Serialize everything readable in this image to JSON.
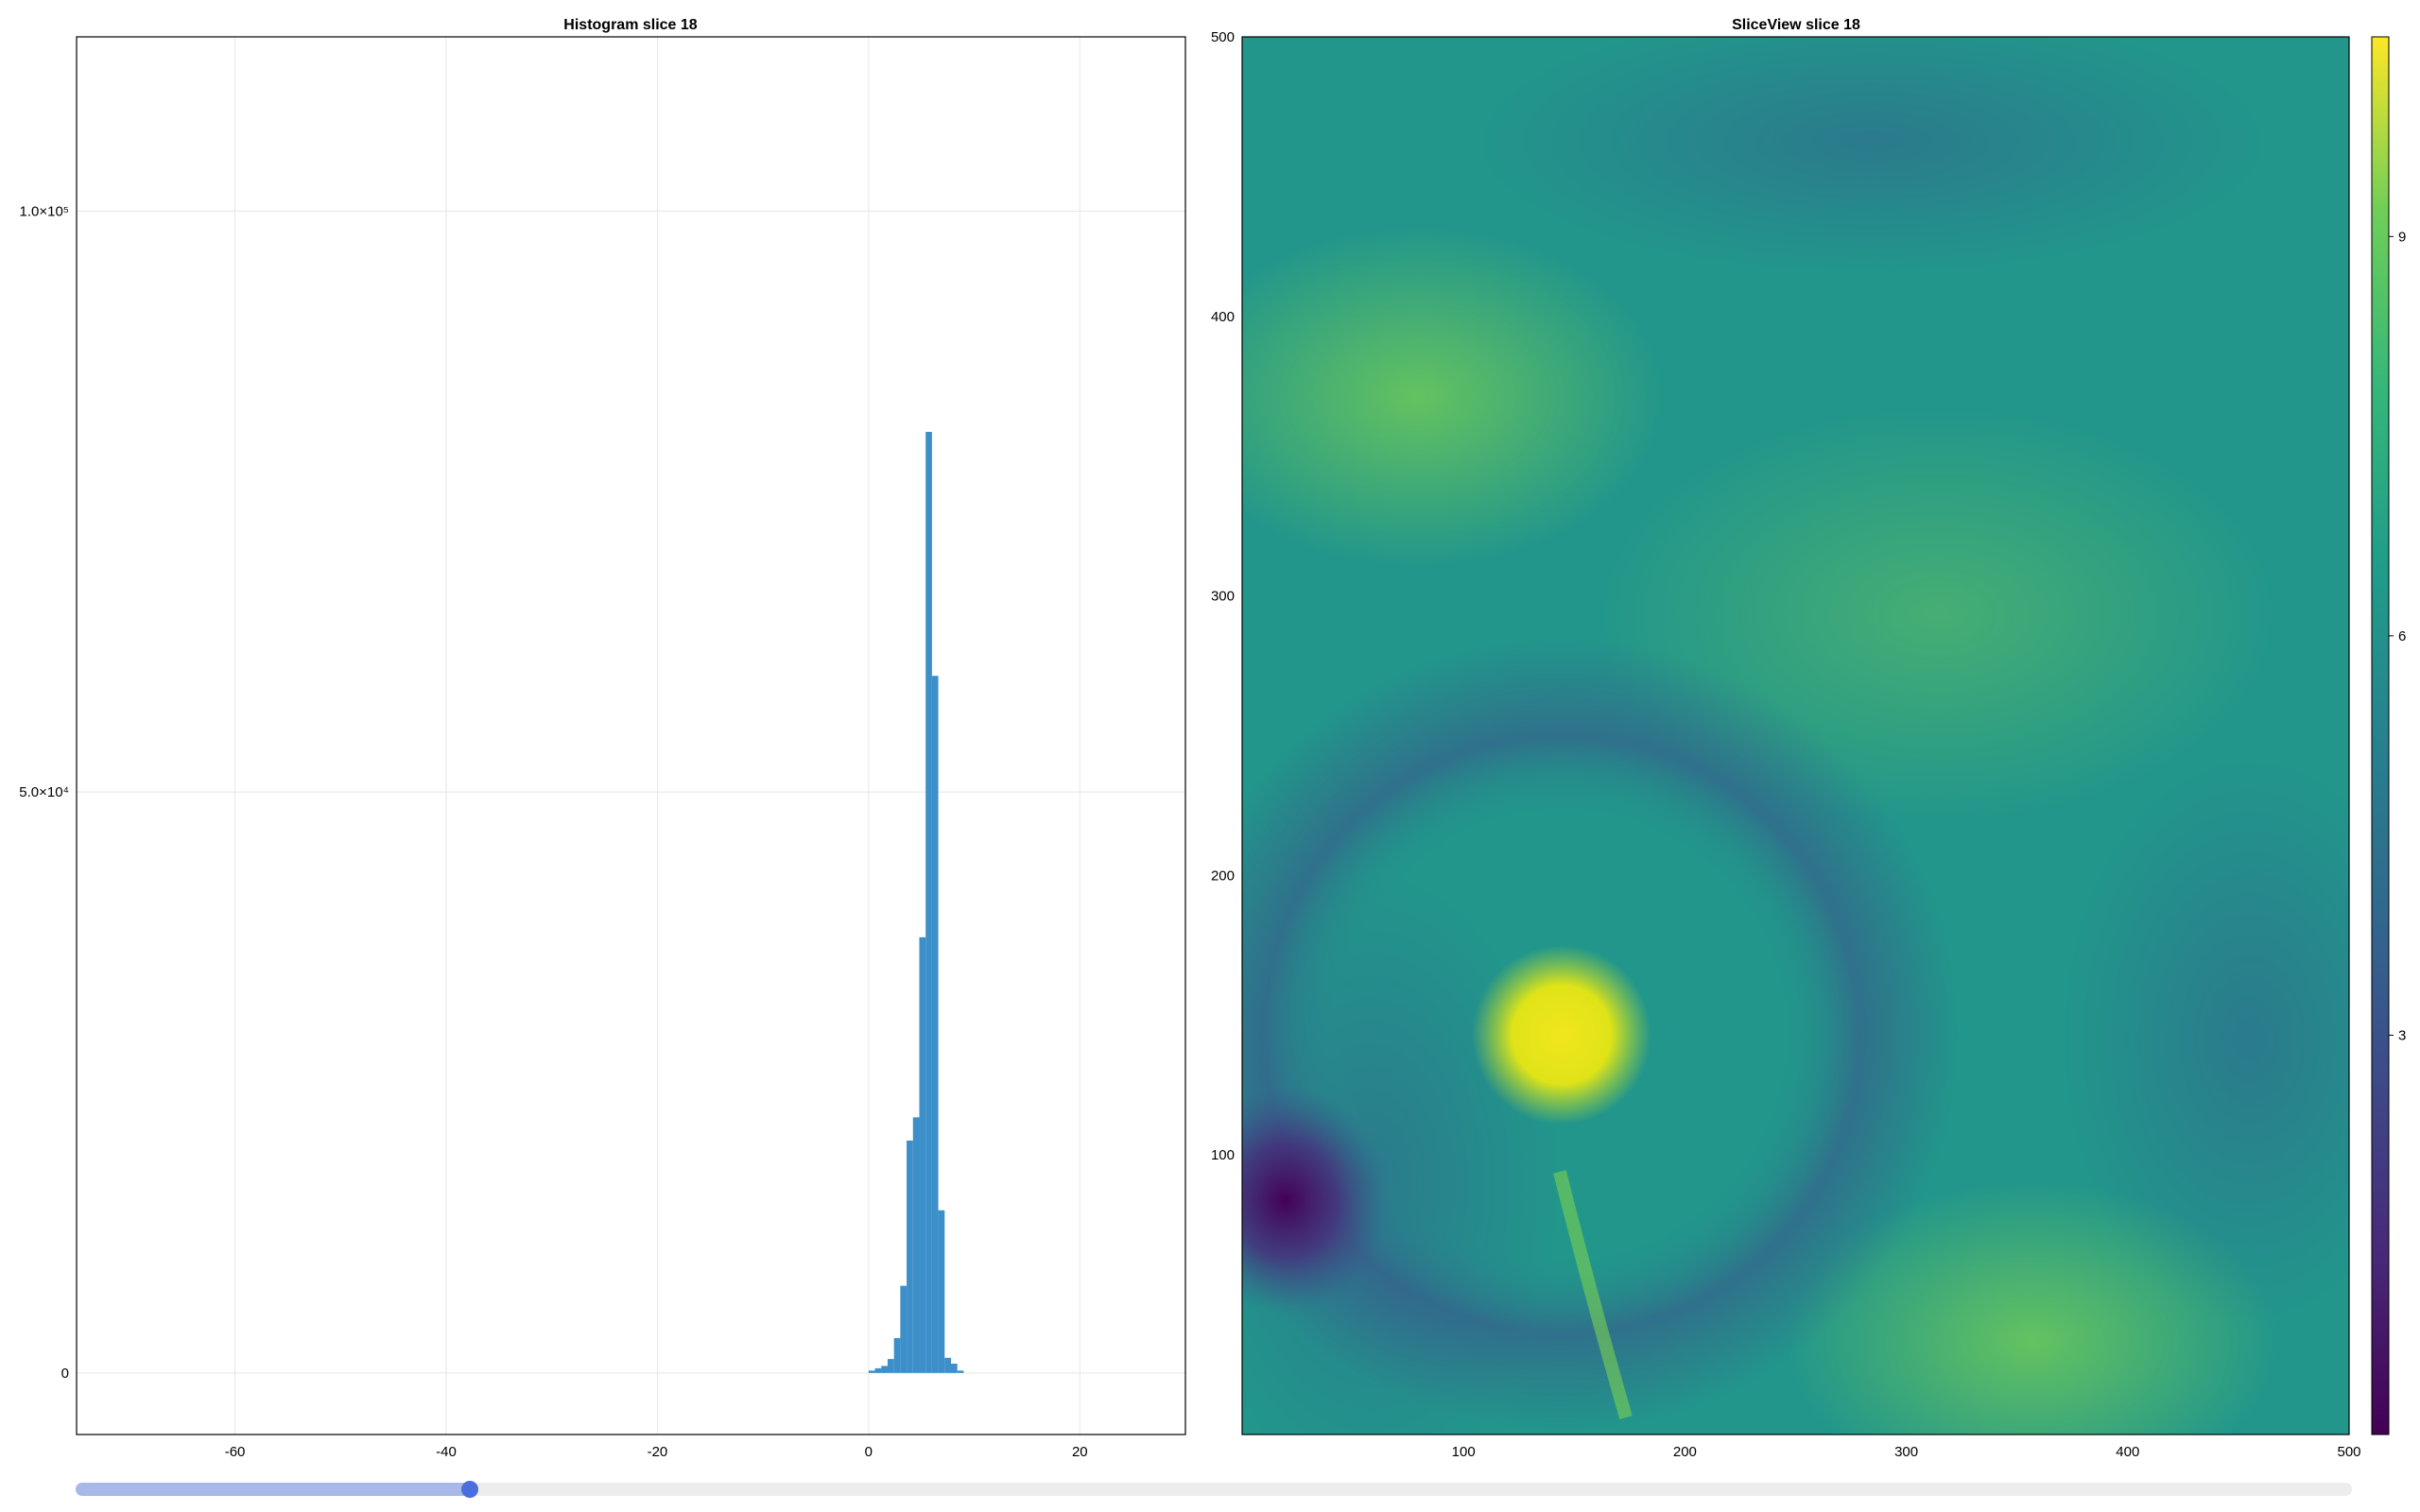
{
  "colors": {
    "bar": "#3c8fc9",
    "grid": "#e6e6e6",
    "axis": "#000000",
    "slider_track": "#ededed",
    "slider_fill": "#a8b8e8",
    "slider_knob": "#4a6fdc"
  },
  "colormap": "viridis",
  "chart_data": [
    {
      "type": "bar",
      "title": "Histogram slice 18",
      "xlabel": "",
      "ylabel": "",
      "xlim": [
        -75,
        30
      ],
      "ylim": [
        -5300,
        115000
      ],
      "grid": true,
      "x_ticks": [
        -60,
        -40,
        -20,
        0,
        20
      ],
      "y_ticks": [
        0,
        50000,
        100000
      ],
      "y_tick_labels": [
        "0",
        "5.0×10⁴",
        "1.0×10⁵"
      ],
      "bin_width": 0.6,
      "bins": [
        {
          "x": 0.3,
          "count": 200
        },
        {
          "x": 0.9,
          "count": 400
        },
        {
          "x": 1.5,
          "count": 600
        },
        {
          "x": 2.1,
          "count": 1200
        },
        {
          "x": 2.7,
          "count": 3000
        },
        {
          "x": 3.3,
          "count": 7500
        },
        {
          "x": 3.9,
          "count": 20000
        },
        {
          "x": 4.5,
          "count": 22000
        },
        {
          "x": 5.1,
          "count": 37500
        },
        {
          "x": 5.7,
          "count": 81000
        },
        {
          "x": 6.3,
          "count": 60000
        },
        {
          "x": 6.9,
          "count": 14000
        },
        {
          "x": 7.5,
          "count": 1300
        },
        {
          "x": 8.1,
          "count": 800
        },
        {
          "x": 8.7,
          "count": 200
        }
      ]
    },
    {
      "type": "heatmap",
      "title": "SliceView slice 18",
      "xlim": [
        0,
        500
      ],
      "ylim": [
        0,
        500
      ],
      "x_ticks": [
        100,
        200,
        300,
        400,
        500
      ],
      "y_ticks": [
        100,
        200,
        300,
        400,
        500
      ],
      "colorbar": {
        "range": [
          0,
          10.5
        ],
        "ticks": [
          3,
          6,
          9
        ]
      },
      "features": {
        "background_value": 6.6,
        "eye_center": [
          145,
          140
        ],
        "eye_value": 10.0,
        "low_region_center": [
          25,
          75
        ],
        "low_region_value": 0.5
      }
    }
  ],
  "slider": {
    "value": 18,
    "fraction": 0.173
  }
}
